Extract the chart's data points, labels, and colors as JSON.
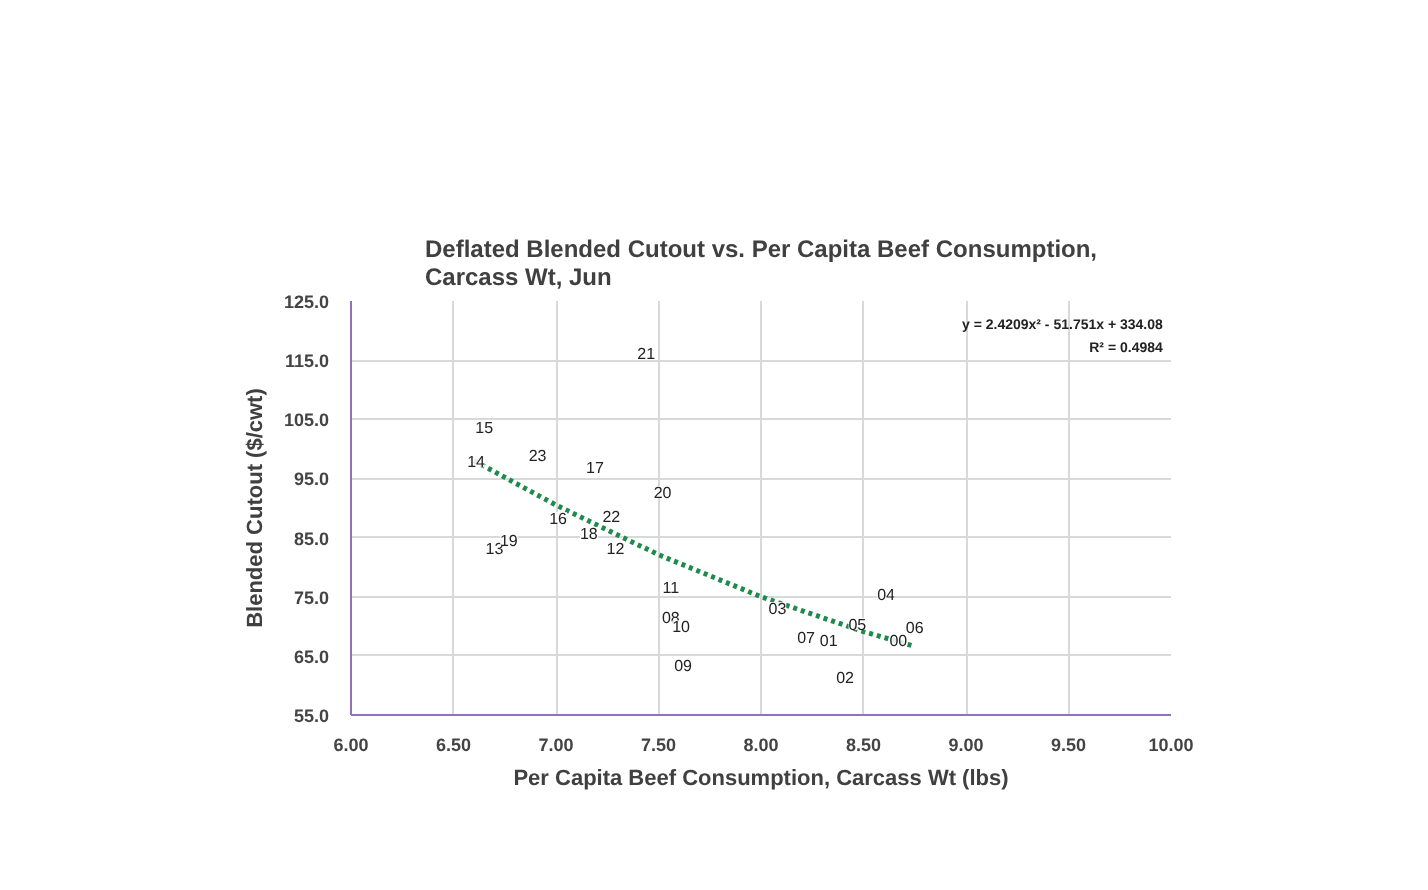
{
  "chart_data": {
    "type": "line",
    "title": "Deflated Blended Cutout vs. Per Capita Beef Consumption, Carcass Wt, Jun",
    "xlabel": "Per Capita Beef Consumption, Carcass Wt (lbs)",
    "ylabel": "Blended Cutout ($/cwt)",
    "xlim": [
      6.0,
      10.0
    ],
    "ylim": [
      55.0,
      125.0
    ],
    "xticks": [
      {
        "value": 6.0,
        "label": "6.00"
      },
      {
        "value": 6.5,
        "label": "6.50"
      },
      {
        "value": 7.0,
        "label": "7.00"
      },
      {
        "value": 7.5,
        "label": "7.50"
      },
      {
        "value": 8.0,
        "label": "8.00"
      },
      {
        "value": 8.5,
        "label": "8.50"
      },
      {
        "value": 9.0,
        "label": "9.00"
      },
      {
        "value": 9.5,
        "label": "9.50"
      },
      {
        "value": 10.0,
        "label": "10.00"
      }
    ],
    "yticks": [
      {
        "value": 55,
        "label": "55.0"
      },
      {
        "value": 65,
        "label": "65.0"
      },
      {
        "value": 75,
        "label": "75.0"
      },
      {
        "value": 85,
        "label": "85.0"
      },
      {
        "value": 95,
        "label": "95.0"
      },
      {
        "value": 105,
        "label": "105.0"
      },
      {
        "value": 115,
        "label": "115.0"
      },
      {
        "value": 125,
        "label": "125.0"
      }
    ],
    "grid": true,
    "series": [
      {
        "color": "#1e8a4c",
        "line_style": "dotted",
        "x": [
          6.6,
          7.0,
          7.5,
          8.0,
          8.5,
          8.75
        ],
        "values": [
          98.0,
          90.5,
          82.1,
          75.0,
          69.1,
          66.6
        ]
      }
    ],
    "annotations": [
      "y = 2.4209x² - 51.751x + 334.08",
      "R² = 0.4984",
      {
        "text": "00",
        "x": 8.67,
        "y": 67.7
      },
      {
        "text": "01",
        "x": 8.33,
        "y": 67.6
      },
      {
        "text": "02",
        "x": 8.41,
        "y": 61.4
      },
      {
        "text": "03",
        "x": 8.08,
        "y": 73.1
      },
      {
        "text": "04",
        "x": 8.61,
        "y": 75.5
      },
      {
        "text": "05",
        "x": 8.47,
        "y": 70.4
      },
      {
        "text": "06",
        "x": 8.75,
        "y": 69.8
      },
      {
        "text": "07",
        "x": 8.22,
        "y": 68.2
      },
      {
        "text": "08",
        "x": 7.56,
        "y": 71.5
      },
      {
        "text": "09",
        "x": 7.62,
        "y": 63.5
      },
      {
        "text": "10",
        "x": 7.61,
        "y": 70.0
      },
      {
        "text": "11",
        "x": 7.56,
        "y": 76.7
      },
      {
        "text": "12",
        "x": 7.29,
        "y": 83.2
      },
      {
        "text": "13",
        "x": 6.7,
        "y": 83.2
      },
      {
        "text": "14",
        "x": 6.61,
        "y": 97.9
      },
      {
        "text": "15",
        "x": 6.65,
        "y": 103.7
      },
      {
        "text": "16",
        "x": 7.01,
        "y": 88.3
      },
      {
        "text": "17",
        "x": 7.19,
        "y": 96.9
      },
      {
        "text": "18",
        "x": 7.16,
        "y": 85.8
      },
      {
        "text": "19",
        "x": 6.77,
        "y": 84.6
      },
      {
        "text": "20",
        "x": 7.52,
        "y": 92.7
      },
      {
        "text": "21",
        "x": 7.44,
        "y": 116.2
      },
      {
        "text": "22",
        "x": 7.27,
        "y": 88.6
      },
      {
        "text": "23",
        "x": 6.91,
        "y": 99.0
      }
    ]
  }
}
